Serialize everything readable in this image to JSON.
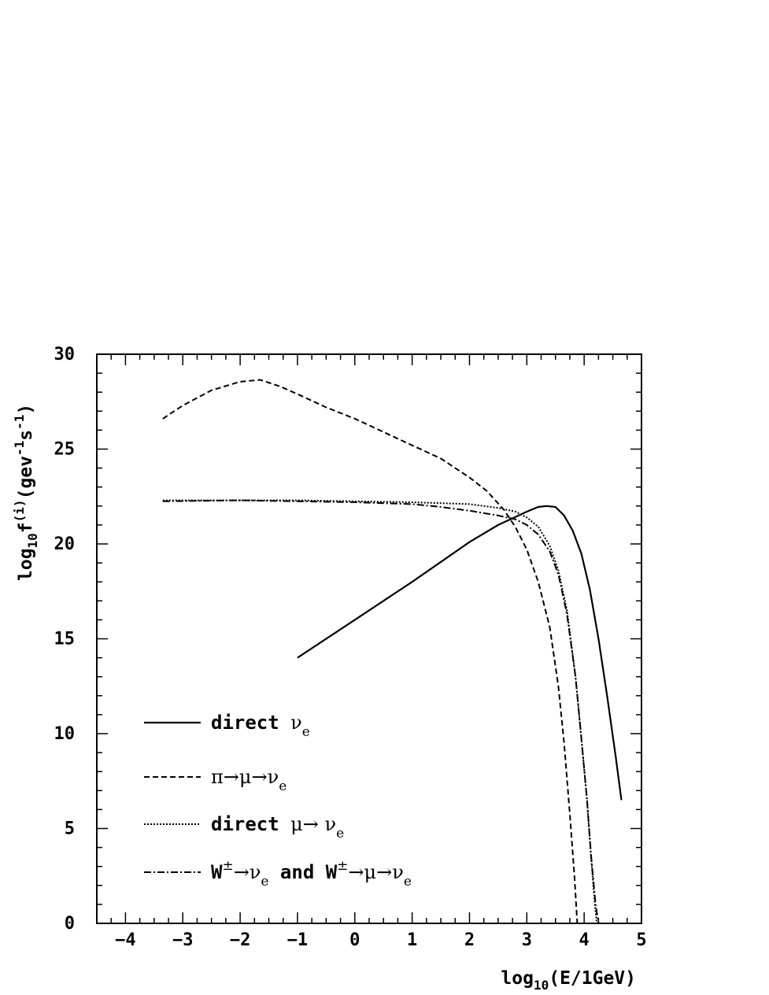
{
  "chart_data": {
    "type": "line",
    "title": "",
    "xlabel": {
      "prefix": "log",
      "sub": "10",
      "suffix": "(E/1GeV)"
    },
    "ylabel": {
      "prefix": "log",
      "sub": "10",
      "mid": "f",
      "sup": "(i)",
      "unit_open": "(gev",
      "unit_exp1": "-1",
      "unit_s": "s",
      "unit_exp2": "-1",
      "unit_close": ")"
    },
    "xlim": [
      -4.5,
      5
    ],
    "ylim": [
      0,
      30
    ],
    "x_ticks": [
      -4,
      -3,
      -2,
      -1,
      0,
      1,
      2,
      3,
      4,
      5
    ],
    "x_tick_labels": [
      "−4",
      "−3",
      "−2",
      "−1",
      "0",
      "1",
      "2",
      "3",
      "4",
      "5"
    ],
    "y_ticks": [
      0,
      5,
      10,
      15,
      20,
      25,
      30
    ],
    "y_tick_labels": [
      "0",
      "5",
      "10",
      "15",
      "20",
      "25",
      "30"
    ],
    "grid": false,
    "legend_position": "bottom-left",
    "series": [
      {
        "style": "solid",
        "legend": [
          {
            "t": "direct ",
            "m": false
          },
          {
            "t": "ν",
            "m": true
          },
          {
            "t": "e",
            "m": true,
            "sub": true
          }
        ],
        "points": [
          [
            -1.0,
            14.0
          ],
          [
            0.0,
            16.0
          ],
          [
            1.0,
            18.0
          ],
          [
            2.0,
            20.1
          ],
          [
            2.5,
            21.0
          ],
          [
            3.0,
            21.7
          ],
          [
            3.2,
            21.95
          ],
          [
            3.35,
            22.0
          ],
          [
            3.5,
            21.95
          ],
          [
            3.65,
            21.5
          ],
          [
            3.8,
            20.7
          ],
          [
            3.95,
            19.5
          ],
          [
            4.1,
            17.6
          ],
          [
            4.25,
            15.0
          ],
          [
            4.4,
            12.0
          ],
          [
            4.55,
            8.8
          ],
          [
            4.65,
            6.5
          ]
        ]
      },
      {
        "style": "dashed",
        "legend": [
          {
            "t": "π→μ→ν",
            "m": true
          },
          {
            "t": "e",
            "m": true,
            "sub": true
          }
        ],
        "points": [
          [
            -3.35,
            26.6
          ],
          [
            -3.0,
            27.3
          ],
          [
            -2.5,
            28.1
          ],
          [
            -2.0,
            28.55
          ],
          [
            -1.65,
            28.65
          ],
          [
            -1.3,
            28.3
          ],
          [
            -1.0,
            27.9
          ],
          [
            -0.5,
            27.2
          ],
          [
            0.0,
            26.6
          ],
          [
            0.5,
            25.9
          ],
          [
            1.0,
            25.2
          ],
          [
            1.5,
            24.5
          ],
          [
            2.0,
            23.5
          ],
          [
            2.3,
            22.8
          ],
          [
            2.6,
            21.8
          ],
          [
            2.8,
            20.9
          ],
          [
            3.0,
            19.7
          ],
          [
            3.2,
            18.0
          ],
          [
            3.4,
            15.6
          ],
          [
            3.55,
            12.5
          ],
          [
            3.65,
            9.5
          ],
          [
            3.75,
            5.8
          ],
          [
            3.83,
            2.5
          ],
          [
            3.88,
            0.0
          ]
        ]
      },
      {
        "style": "dotted",
        "legend": [
          {
            "t": "direct ",
            "m": false
          },
          {
            "t": "μ→ ν",
            "m": true
          },
          {
            "t": "e",
            "m": true,
            "sub": true
          }
        ],
        "points": [
          [
            -3.35,
            22.3
          ],
          [
            -2.0,
            22.3
          ],
          [
            -1.0,
            22.3
          ],
          [
            0.0,
            22.25
          ],
          [
            1.0,
            22.2
          ],
          [
            2.0,
            22.1
          ],
          [
            2.5,
            21.9
          ],
          [
            2.8,
            21.7
          ],
          [
            3.0,
            21.4
          ],
          [
            3.2,
            20.9
          ],
          [
            3.4,
            19.9
          ],
          [
            3.55,
            18.6
          ],
          [
            3.7,
            16.5
          ],
          [
            3.85,
            13.0
          ],
          [
            3.95,
            9.8
          ],
          [
            4.05,
            6.5
          ],
          [
            4.12,
            3.5
          ],
          [
            4.18,
            1.2
          ],
          [
            4.22,
            0.0
          ]
        ]
      },
      {
        "style": "dashdot",
        "legend": [
          {
            "t": "W",
            "m": false
          },
          {
            "t": "±",
            "m": true,
            "sup": true
          },
          {
            "t": "→ν",
            "m": true
          },
          {
            "t": "e",
            "m": true,
            "sub": true
          },
          {
            "t": " and W",
            "m": false
          },
          {
            "t": "±",
            "m": true,
            "sup": true
          },
          {
            "t": "→μ→ν",
            "m": true
          },
          {
            "t": "e",
            "m": true,
            "sub": true
          }
        ],
        "points": [
          [
            -3.35,
            22.25
          ],
          [
            -2.0,
            22.3
          ],
          [
            -1.0,
            22.25
          ],
          [
            0.0,
            22.2
          ],
          [
            1.0,
            22.1
          ],
          [
            1.5,
            21.95
          ],
          [
            2.0,
            21.75
          ],
          [
            2.5,
            21.5
          ],
          [
            2.8,
            21.3
          ],
          [
            3.0,
            21.0
          ],
          [
            3.2,
            20.5
          ],
          [
            3.4,
            19.6
          ],
          [
            3.55,
            18.4
          ],
          [
            3.7,
            16.3
          ],
          [
            3.85,
            13.0
          ],
          [
            3.95,
            9.8
          ],
          [
            4.05,
            6.5
          ],
          [
            4.12,
            3.6
          ],
          [
            4.2,
            1.0
          ],
          [
            4.25,
            0.0
          ]
        ]
      }
    ]
  }
}
